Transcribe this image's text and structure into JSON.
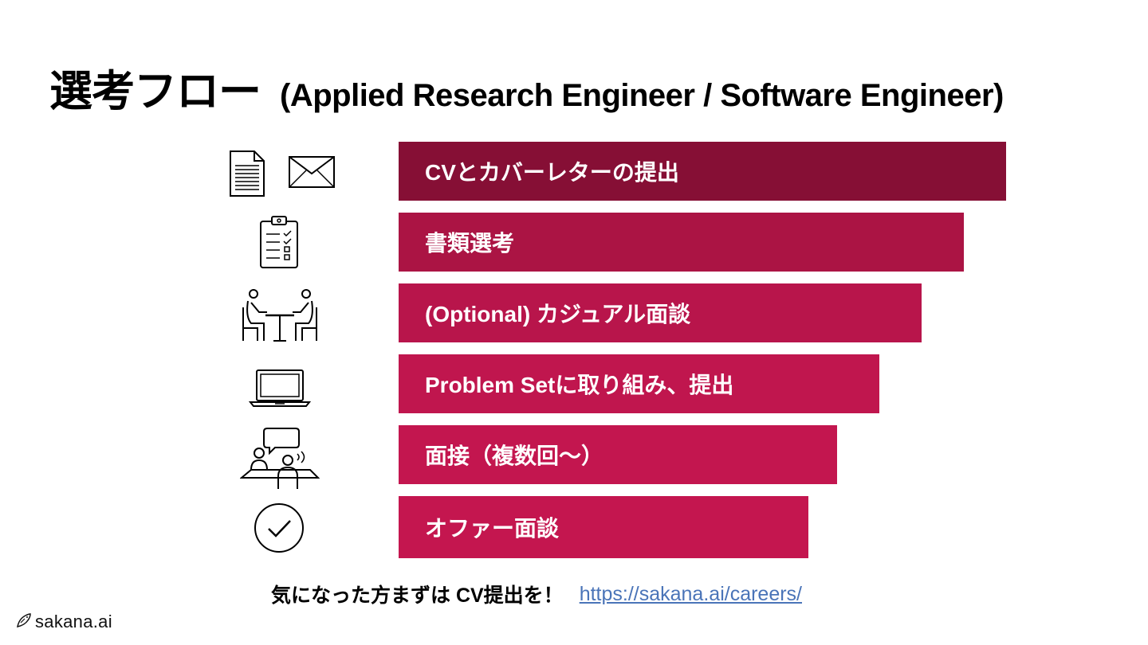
{
  "slide": {
    "title_jp": "選考フロー",
    "title_en": "(Applied Research Engineer / Software Engineer)"
  },
  "steps": [
    {
      "label": "CVとカバーレターの提出",
      "icon": "document-and-envelope-icon",
      "color": "#860f35"
    },
    {
      "label": "書類選考",
      "icon": "clipboard-checklist-icon",
      "color": "#ab1444"
    },
    {
      "label": "(Optional) カジュアル面談",
      "icon": "two-people-at-table-icon",
      "color": "#b8154b"
    },
    {
      "label": "Problem Setに取り組み、提出",
      "icon": "laptop-icon",
      "color": "#c0164e"
    },
    {
      "label": "面接（複数回〜）",
      "icon": "interview-speech-bubble-icon",
      "color": "#c3164f"
    },
    {
      "label": "オファー面談",
      "icon": "check-circle-icon",
      "color": "#c4164f"
    }
  ],
  "cta": {
    "text": "気になった方まずは CV提出を！",
    "link": "https://sakana.ai/careers/"
  },
  "logo": {
    "text": "sakana.ai",
    "icon": "fish-logo-icon"
  }
}
